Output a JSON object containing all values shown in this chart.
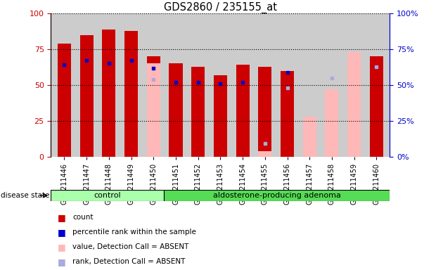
{
  "title": "GDS2860 / 235155_at",
  "samples": [
    "GSM211446",
    "GSM211447",
    "GSM211448",
    "GSM211449",
    "GSM211450",
    "GSM211451",
    "GSM211452",
    "GSM211453",
    "GSM211454",
    "GSM211455",
    "GSM211456",
    "GSM211457",
    "GSM211458",
    "GSM211459",
    "GSM211460"
  ],
  "count_values": [
    79,
    85,
    89,
    88,
    70,
    65,
    63,
    57,
    64,
    63,
    60,
    null,
    null,
    null,
    70
  ],
  "rank_values": [
    64,
    67,
    65,
    67,
    62,
    52,
    52,
    51,
    52,
    null,
    59,
    null,
    null,
    null,
    63
  ],
  "absent_value_values": [
    null,
    null,
    null,
    null,
    65,
    null,
    null,
    null,
    null,
    4,
    null,
    28,
    47,
    73,
    null
  ],
  "absent_rank_values": [
    null,
    null,
    null,
    null,
    54,
    null,
    null,
    null,
    null,
    9,
    48,
    null,
    55,
    null,
    63
  ],
  "group_labels": [
    "control",
    "aldosterone-producing adenoma"
  ],
  "ctrl_count": 5,
  "total_count": 15,
  "bar_color_red": "#cc0000",
  "bar_color_pink": "#ffb8b8",
  "dot_color_blue": "#0000cc",
  "dot_color_lightblue": "#aaaadd",
  "left_axis_color": "#cc0000",
  "right_axis_color": "#0000cc",
  "ylim": [
    0,
    100
  ],
  "yticks": [
    0,
    25,
    50,
    75,
    100
  ],
  "bg_color": "#cccccc",
  "group_bg_control": "#aaffaa",
  "group_bg_adenoma": "#55dd55",
  "legend_items": [
    {
      "label": "count",
      "color": "#cc0000"
    },
    {
      "label": "percentile rank within the sample",
      "color": "#0000cc"
    },
    {
      "label": "value, Detection Call = ABSENT",
      "color": "#ffb8b8"
    },
    {
      "label": "rank, Detection Call = ABSENT",
      "color": "#aaaadd"
    }
  ]
}
